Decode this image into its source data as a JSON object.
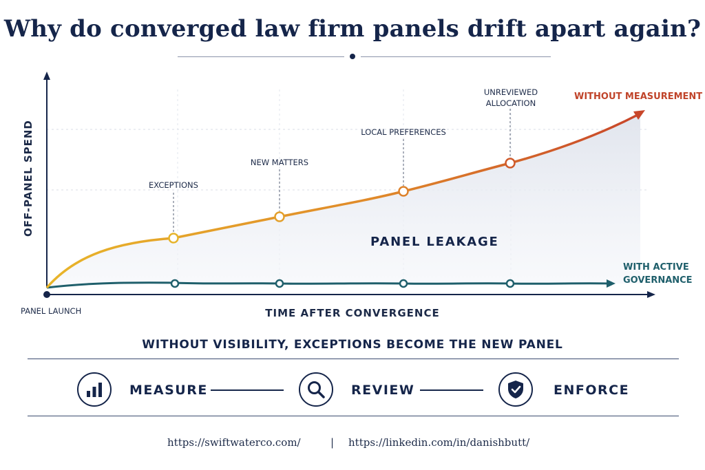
{
  "title": "Why do converged law firm panels drift apart again?",
  "diagram": {
    "y_axis_label": "OFF-PANEL SPEND",
    "x_axis_label": "TIME AFTER CONVERGENCE",
    "origin_label": "PANEL LAUNCH",
    "region_label": "PANEL LEAKAGE",
    "upper_curve": {
      "name": "WITHOUT MEASUREMENT",
      "color": "#c8462a",
      "color_start": "#e8b52a",
      "milestones": [
        "EXCEPTIONS",
        "NEW MATTERS",
        "LOCAL PREFERENCES",
        "UNREVIEWED ALLOCATION"
      ]
    },
    "lower_curve": {
      "name_line1": "WITH ACTIVE",
      "name_line2": "GOVERNANCE",
      "color": "#1f5f6b"
    }
  },
  "tagline": "WITHOUT VISIBILITY, EXCEPTIONS BECOME THE NEW PANEL",
  "steps": [
    {
      "label": "MEASURE",
      "icon": "bar-chart-icon"
    },
    {
      "label": "REVIEW",
      "icon": "magnifier-icon"
    },
    {
      "label": "ENFORCE",
      "icon": "shield-check-icon"
    }
  ],
  "footer": {
    "link1": "https://swiftwaterco.com/",
    "separator": "|",
    "link2": "https://linkedin.com/in/danishbutt/"
  }
}
